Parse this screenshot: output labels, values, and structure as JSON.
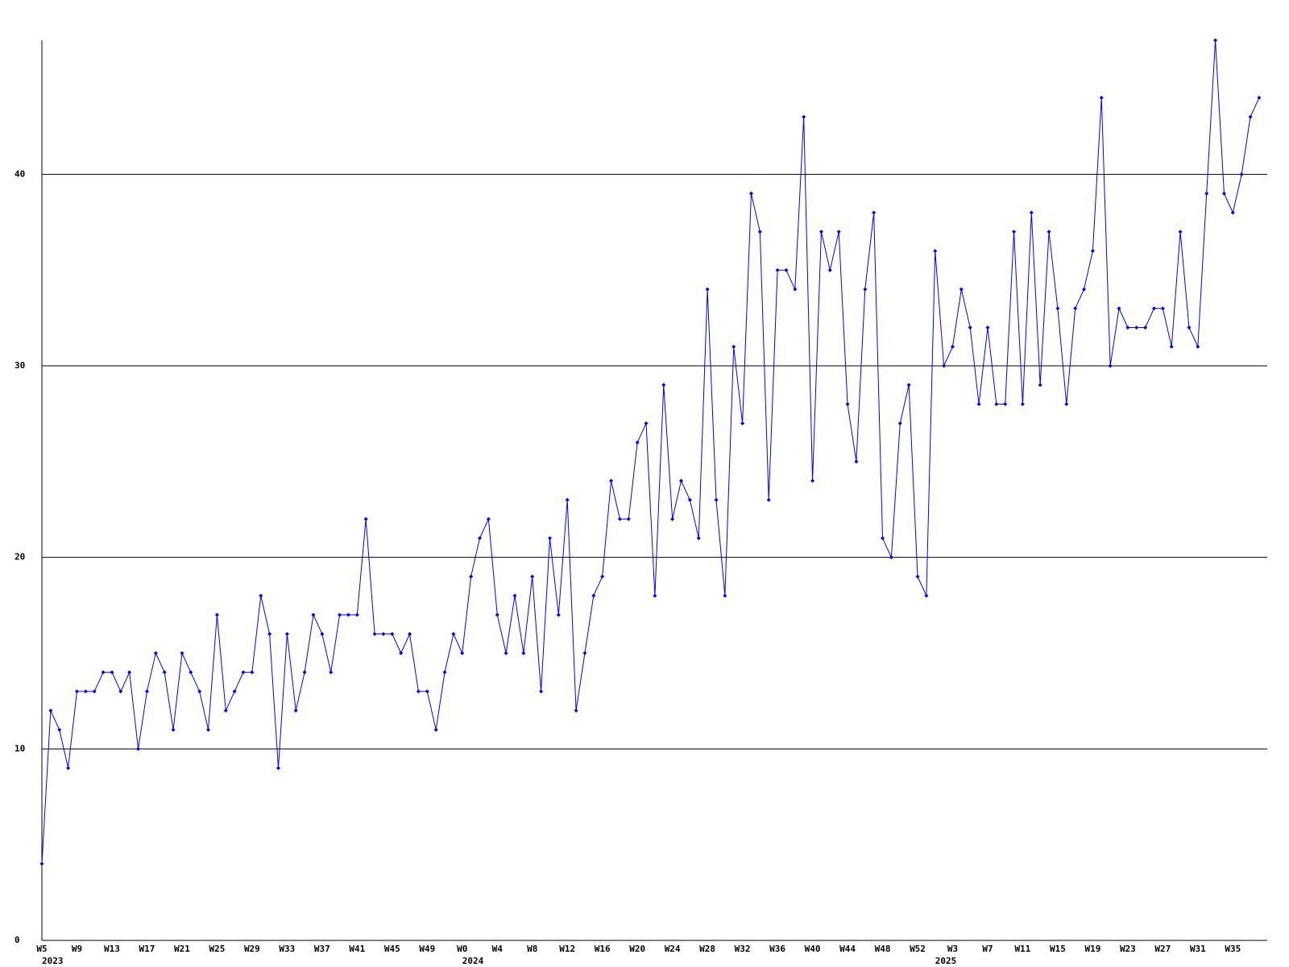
{
  "chart_data": {
    "type": "line",
    "categories": [
      "W5",
      null,
      null,
      null,
      "W9",
      null,
      null,
      null,
      "W13",
      null,
      null,
      null,
      "W17",
      null,
      null,
      null,
      "W21",
      null,
      null,
      null,
      "W25",
      null,
      null,
      null,
      "W29",
      null,
      null,
      null,
      "W33",
      null,
      null,
      null,
      "W37",
      null,
      null,
      null,
      "W41",
      null,
      null,
      null,
      "W45",
      null,
      null,
      null,
      "W49",
      null,
      null,
      null,
      "W0",
      null,
      null,
      null,
      "W4",
      null,
      null,
      null,
      "W8",
      null,
      null,
      null,
      "W12",
      null,
      null,
      null,
      "W16",
      null,
      null,
      null,
      "W20",
      null,
      null,
      null,
      "W24",
      null,
      null,
      null,
      "W28",
      null,
      null,
      null,
      "W32",
      null,
      null,
      null,
      "W36",
      null,
      null,
      null,
      "W40",
      null,
      null,
      null,
      "W44",
      null,
      null,
      null,
      "W48",
      null,
      null,
      null,
      "W52",
      null,
      null,
      null,
      "W3",
      null,
      null,
      null,
      "W7",
      null,
      null,
      null,
      "W11",
      null,
      null,
      null,
      "W15",
      null,
      null,
      null,
      "W19",
      null,
      null,
      null,
      "W23",
      null,
      null,
      null,
      "W27",
      null,
      null,
      null,
      "W31",
      null,
      null,
      null,
      "W35",
      null,
      null,
      null
    ],
    "year_labels": [
      "2023",
      null,
      null,
      null,
      null,
      null,
      null,
      null,
      null,
      null,
      null,
      null,
      null,
      null,
      null,
      null,
      null,
      null,
      null,
      null,
      null,
      null,
      null,
      null,
      null,
      null,
      null,
      null,
      null,
      null,
      null,
      null,
      null,
      null,
      null,
      null,
      null,
      null,
      null,
      null,
      null,
      null,
      null,
      null,
      null,
      null,
      null,
      null,
      "2024",
      null,
      null,
      null,
      null,
      null,
      null,
      null,
      null,
      null,
      null,
      null,
      null,
      null,
      null,
      null,
      null,
      null,
      null,
      null,
      null,
      null,
      null,
      null,
      null,
      null,
      null,
      null,
      null,
      null,
      null,
      null,
      null,
      null,
      null,
      null,
      null,
      null,
      null,
      null,
      null,
      null,
      null,
      null,
      null,
      null,
      null,
      null,
      null,
      null,
      null,
      null,
      null,
      null,
      "2025",
      null,
      null,
      null,
      null,
      null,
      null,
      null,
      null,
      null,
      null,
      null,
      null,
      null,
      null,
      null,
      null,
      null,
      null,
      null,
      null,
      null,
      null,
      null,
      null,
      null,
      null,
      null,
      null,
      null,
      null,
      null,
      null,
      null,
      null,
      null,
      null,
      null
    ],
    "series": [
      {
        "color": "#0000ff",
        "values": [
          4,
          12,
          11,
          9,
          13,
          13,
          13,
          14,
          14,
          13,
          14,
          10,
          13,
          15,
          14,
          11,
          15,
          14,
          13,
          11,
          17,
          12,
          13,
          14,
          14,
          18,
          16,
          9,
          16,
          12,
          14,
          17,
          16,
          14,
          17,
          17,
          17,
          22,
          16,
          16,
          16,
          15,
          16,
          13,
          13,
          11,
          14,
          16,
          15,
          19,
          21,
          22,
          17,
          15,
          18,
          15,
          19,
          13,
          21,
          17,
          23,
          12,
          15,
          18,
          19,
          24,
          22,
          22,
          26,
          27,
          18,
          29,
          22,
          24,
          23,
          21,
          34,
          23,
          18,
          31,
          27,
          39,
          37,
          23,
          35,
          35,
          34,
          43,
          24,
          37,
          35,
          37,
          28,
          25,
          34,
          38,
          21,
          20,
          27,
          29,
          19,
          18,
          36,
          30,
          31,
          34,
          32,
          28,
          32,
          28,
          28,
          37,
          28,
          38,
          29,
          37,
          33,
          28,
          33,
          34,
          36,
          44,
          30,
          33,
          32,
          32,
          32,
          33,
          33,
          31,
          37,
          32,
          31,
          39,
          47,
          39,
          38,
          40,
          43,
          44
        ]
      }
    ],
    "ylim": [
      0,
      47
    ],
    "yticks": [
      0,
      10,
      20,
      30,
      40
    ],
    "grid": true
  }
}
